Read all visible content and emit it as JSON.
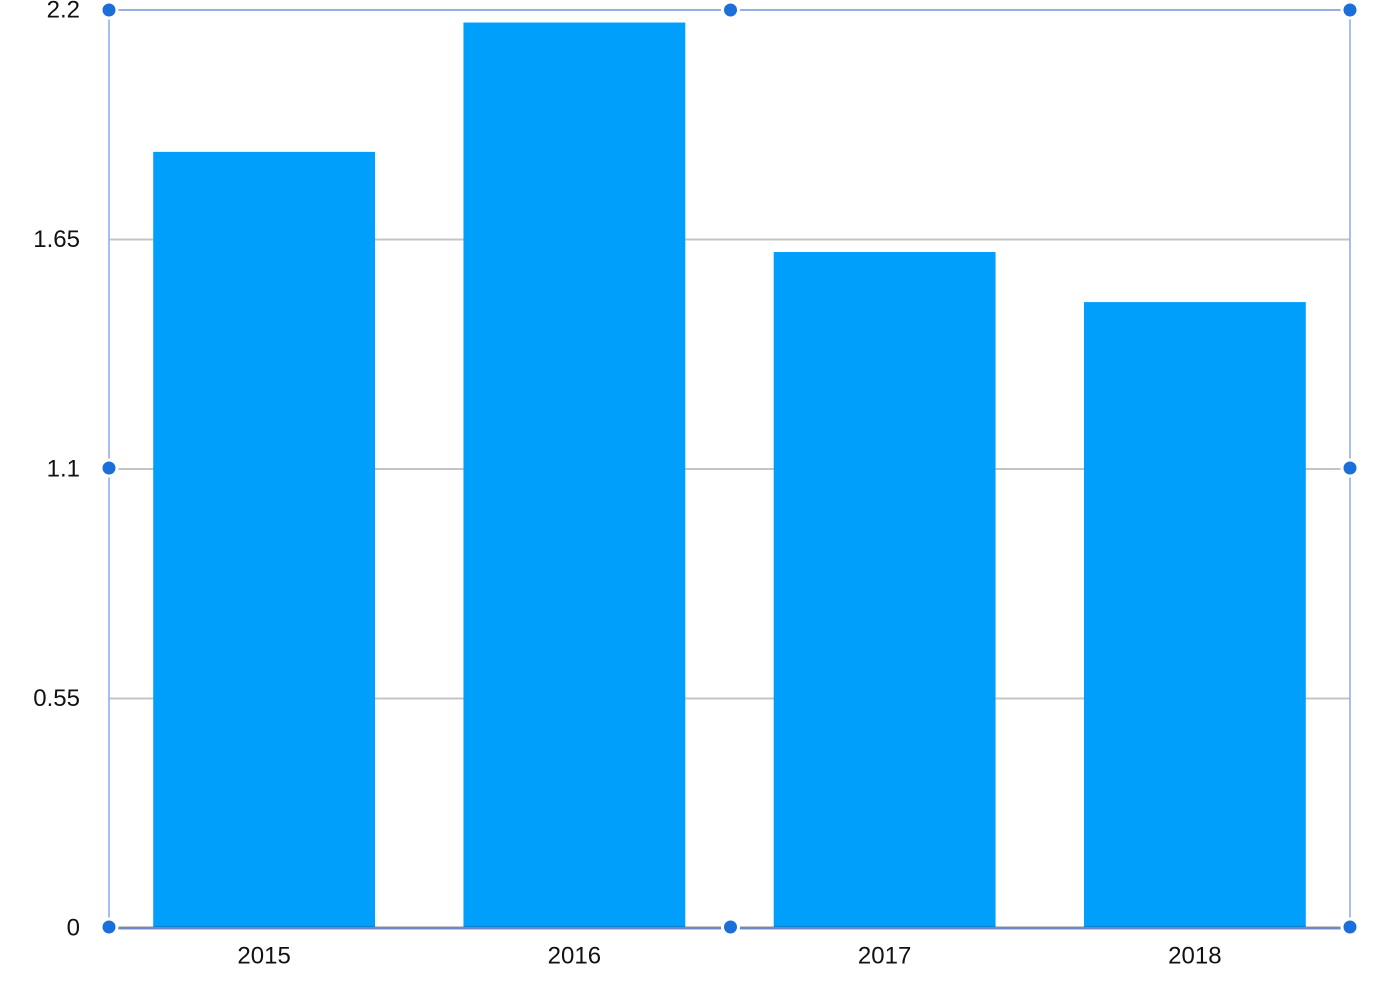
{
  "chart_data": {
    "type": "bar",
    "categories": [
      "2015",
      "2016",
      "2017",
      "2018"
    ],
    "values": [
      1.86,
      2.17,
      1.62,
      1.5
    ],
    "y_ticks": [
      "0",
      "0.55",
      "1.1",
      "1.65",
      "2.2"
    ],
    "ylim": [
      0,
      2.2
    ],
    "title": "",
    "xlabel": "",
    "ylabel": "",
    "grid": "horizontal",
    "legend": "none",
    "bar_color": "#009ffc",
    "selection_frame_color": "#8aa8ee",
    "selection_handle_color": "#1a6fd9"
  }
}
